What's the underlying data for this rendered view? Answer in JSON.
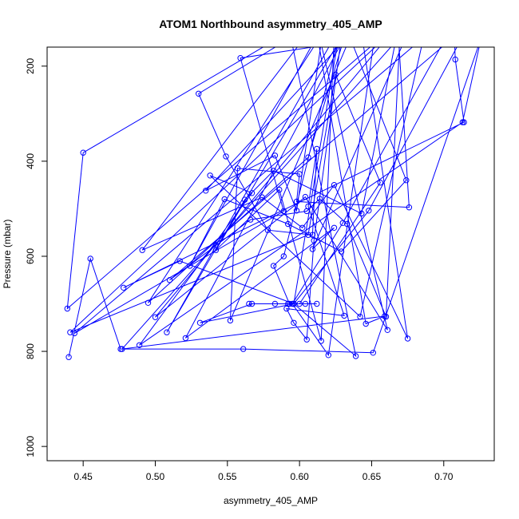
{
  "chart_data": {
    "type": "line",
    "title": "ATOM1 Northbound asymmetry_405_AMP",
    "xlabel": "asymmetry_405_AMP",
    "ylabel": "Pressure (mbar)",
    "xlim": [
      0.425,
      0.735
    ],
    "ylim": [
      1030,
      160
    ],
    "y_reversed": true,
    "grid": false,
    "legend": "none",
    "x_ticks": [
      0.45,
      0.5,
      0.55,
      0.6,
      0.65,
      0.7
    ],
    "x_tick_labels": [
      "0.45",
      "0.50",
      "0.55",
      "0.60",
      "0.65",
      "0.70"
    ],
    "y_ticks": [
      200,
      400,
      600,
      800,
      1000
    ],
    "y_tick_labels": [
      "200",
      "400",
      "600",
      "800",
      "1000"
    ],
    "series": [
      {
        "color": "#0000ff",
        "marker": "open-circle",
        "points": [
          [
            0.44,
            812
          ],
          [
            0.455,
            605
          ],
          [
            0.476,
            795
          ],
          [
            0.561,
            795
          ],
          [
            0.651,
            803
          ],
          [
            0.726,
            140
          ],
          [
            0.713,
            318
          ],
          [
            0.489,
            787
          ],
          [
            0.567,
            467
          ],
          [
            0.538,
            430
          ],
          [
            0.642,
            727
          ],
          [
            0.686,
            140
          ],
          [
            0.444,
            762
          ],
          [
            0.589,
            505
          ],
          [
            0.559,
            183
          ],
          [
            0.652,
            140
          ],
          [
            0.62,
            808
          ],
          [
            0.595,
            700
          ],
          [
            0.63,
            530
          ],
          [
            0.707,
            110
          ],
          [
            0.708,
            186
          ],
          [
            0.714,
            318
          ],
          [
            0.478,
            666
          ],
          [
            0.517,
            610
          ],
          [
            0.596,
            700
          ],
          [
            0.648,
            504
          ],
          [
            0.718,
            110
          ],
          [
            0.51,
            650
          ],
          [
            0.566,
            523
          ],
          [
            0.605,
            505
          ],
          [
            0.614,
            479
          ],
          [
            0.633,
            532
          ],
          [
            0.66,
            727
          ],
          [
            0.67,
            110
          ],
          [
            0.441,
            760
          ],
          [
            0.606,
            555
          ],
          [
            0.625,
            218
          ],
          [
            0.656,
            445
          ],
          [
            0.6,
            700
          ],
          [
            0.612,
            700
          ],
          [
            0.565,
            700
          ],
          [
            0.604,
            700
          ],
          [
            0.596,
            700
          ],
          [
            0.592,
            700
          ],
          [
            0.583,
            700
          ],
          [
            0.567,
            700
          ],
          [
            0.531,
            740
          ],
          [
            0.596,
            700
          ],
          [
            0.627,
            140
          ],
          [
            0.589,
            600
          ],
          [
            0.582,
            620
          ],
          [
            0.593,
            700
          ],
          [
            0.596,
            700
          ],
          [
            0.639,
            810
          ],
          [
            0.594,
            140
          ],
          [
            0.53,
            258
          ],
          [
            0.549,
            390
          ],
          [
            0.578,
            545
          ],
          [
            0.609,
            555
          ],
          [
            0.612,
            374
          ],
          [
            0.606,
            495
          ],
          [
            0.631,
            725
          ],
          [
            0.591,
            710
          ],
          [
            0.596,
            740
          ],
          [
            0.605,
            775
          ],
          [
            0.61,
            567
          ],
          [
            0.629,
            140
          ],
          [
            0.542,
            587
          ],
          [
            0.586,
            460
          ],
          [
            0.615,
            778
          ],
          [
            0.624,
            140
          ],
          [
            0.508,
            760
          ],
          [
            0.562,
            481
          ],
          [
            0.582,
            420
          ],
          [
            0.643,
            510
          ],
          [
            0.669,
            110
          ],
          [
            0.5,
            728
          ],
          [
            0.604,
            475
          ],
          [
            0.661,
            755
          ],
          [
            0.614,
            140
          ],
          [
            0.495,
            698
          ],
          [
            0.606,
            392
          ],
          [
            0.631,
            140
          ],
          [
            0.521,
            772
          ],
          [
            0.624,
            540
          ],
          [
            0.609,
            585
          ],
          [
            0.678,
            110
          ],
          [
            0.477,
            795
          ],
          [
            0.659,
            726
          ],
          [
            0.646,
            742
          ],
          [
            0.611,
            110
          ],
          [
            0.491,
            587
          ],
          [
            0.574,
            476
          ],
          [
            0.602,
            540
          ],
          [
            0.624,
            450
          ],
          [
            0.675,
            773
          ],
          [
            0.642,
            110
          ],
          [
            0.535,
            462
          ],
          [
            0.583,
            388
          ],
          [
            0.598,
            504
          ],
          [
            0.617,
            110
          ],
          [
            0.524,
            620
          ],
          [
            0.548,
            480
          ],
          [
            0.592,
            532
          ],
          [
            0.629,
            590
          ],
          [
            0.674,
            440
          ],
          [
            0.635,
            140
          ],
          [
            0.552,
            735
          ],
          [
            0.557,
            415
          ],
          [
            0.6,
            427
          ],
          [
            0.598,
            485
          ],
          [
            0.676,
            497
          ],
          [
            0.668,
            110
          ],
          [
            0.439,
            710
          ],
          [
            0.45,
            382
          ],
          [
            0.586,
            140
          ]
        ]
      }
    ]
  }
}
